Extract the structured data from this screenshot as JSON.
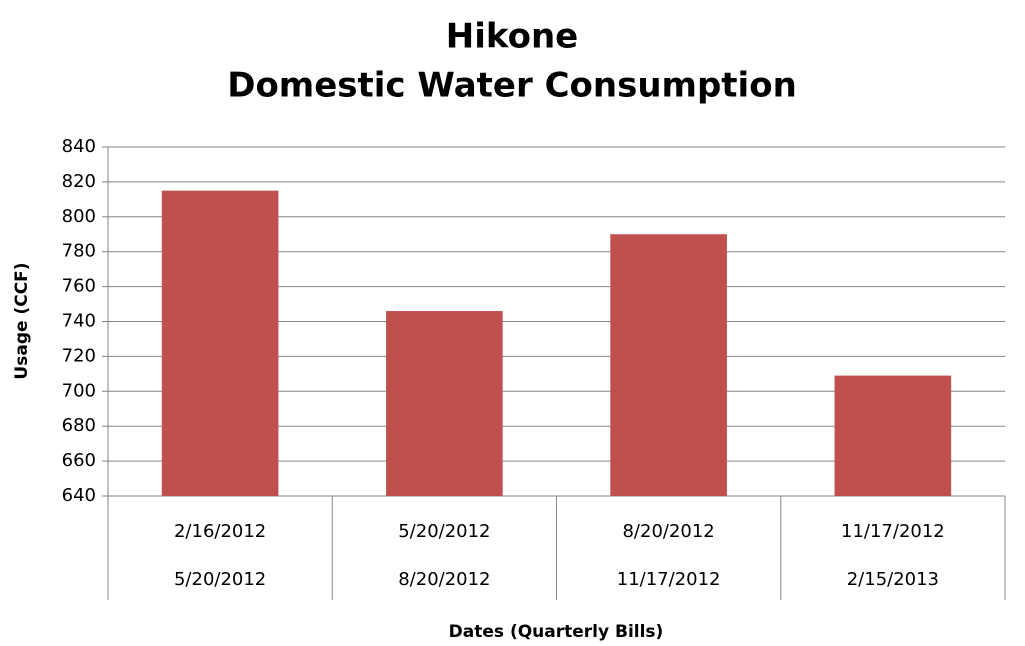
{
  "chart_data": {
    "type": "bar",
    "title": [
      "Hikone",
      "Domestic Water Consumption"
    ],
    "x_label": "Dates (Quarterly Bills)",
    "y_label": "Usage (CCF)",
    "categories": [
      [
        "2/16/2012",
        "5/20/2012"
      ],
      [
        "5/20/2012",
        "8/20/2012"
      ],
      [
        "8/20/2012",
        "11/17/2012"
      ],
      [
        "11/17/2012",
        "2/15/2013"
      ]
    ],
    "values": [
      815,
      746,
      790,
      709
    ],
    "color": "#c0504d",
    "ylim": [
      640,
      840
    ],
    "yticks": [
      640,
      660,
      680,
      700,
      720,
      740,
      760,
      780,
      800,
      820,
      840
    ],
    "grid": true
  }
}
